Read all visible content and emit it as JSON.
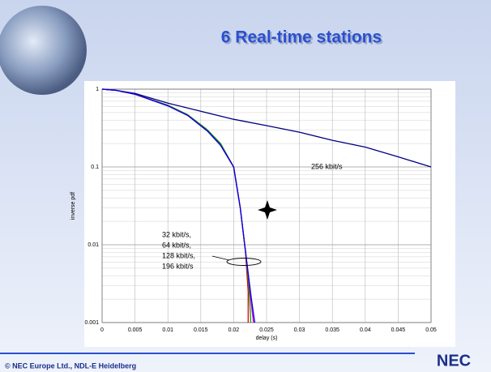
{
  "header": {
    "title": "6 Real-time stations"
  },
  "footer": {
    "text": "© NEC Europe Ltd., NDL-E Heidelberg",
    "logo": "NEC"
  },
  "chart_data": {
    "type": "line",
    "x_label": "delay (s)",
    "y_label": "inverse pdf",
    "xlim": [
      0,
      0.05
    ],
    "ylim": [
      0.001,
      1
    ],
    "log_y": true,
    "grid": true,
    "minor_grid": true,
    "xticks": [
      0,
      0.005,
      0.01,
      0.015,
      0.02,
      0.025,
      0.03,
      0.035,
      0.04,
      0.045,
      0.05
    ],
    "yticks": [
      0.001,
      0.01,
      0.1,
      1
    ],
    "series": [
      {
        "name": "256 kbit/s",
        "color": "#000080",
        "x": [
          0,
          0.002,
          0.005,
          0.01,
          0.015,
          0.02,
          0.025,
          0.03,
          0.035,
          0.04,
          0.045,
          0.05
        ],
        "values": [
          1,
          0.97,
          0.88,
          0.66,
          0.52,
          0.41,
          0.34,
          0.28,
          0.22,
          0.18,
          0.135,
          0.1
        ]
      },
      {
        "name": "32 kbit/s,",
        "color": "#e00000",
        "x": [
          0,
          0.002,
          0.005,
          0.01,
          0.013,
          0.016,
          0.018,
          0.02,
          0.021,
          0.0218,
          0.0222,
          0.0222
        ],
        "values": [
          1,
          0.97,
          0.86,
          0.62,
          0.47,
          0.3,
          0.2,
          0.1,
          0.03,
          0.008,
          0.0025,
          0.001
        ]
      },
      {
        "name": "64 kbit/s,",
        "color": "#00a000",
        "x": [
          0,
          0.002,
          0.005,
          0.01,
          0.013,
          0.016,
          0.018,
          0.02,
          0.021,
          0.0219,
          0.0224,
          0.0226
        ],
        "values": [
          1,
          0.97,
          0.86,
          0.62,
          0.47,
          0.3,
          0.2,
          0.1,
          0.03,
          0.007,
          0.0022,
          0.001
        ]
      },
      {
        "name": "128 kbit/s,",
        "color": "#e000e0",
        "x": [
          0,
          0.002,
          0.005,
          0.01,
          0.013,
          0.016,
          0.018,
          0.02,
          0.021,
          0.022,
          0.0226,
          0.023
        ],
        "values": [
          1,
          0.97,
          0.86,
          0.61,
          0.46,
          0.29,
          0.19,
          0.1,
          0.03,
          0.006,
          0.002,
          0.001
        ]
      },
      {
        "name": "196 kbit/s",
        "color": "#0000e0",
        "x": [
          0,
          0.002,
          0.005,
          0.01,
          0.013,
          0.016,
          0.018,
          0.02,
          0.021,
          0.022,
          0.0227,
          0.0232
        ],
        "values": [
          1,
          0.97,
          0.86,
          0.61,
          0.46,
          0.29,
          0.19,
          0.1,
          0.03,
          0.006,
          0.002,
          0.001
        ]
      }
    ]
  }
}
